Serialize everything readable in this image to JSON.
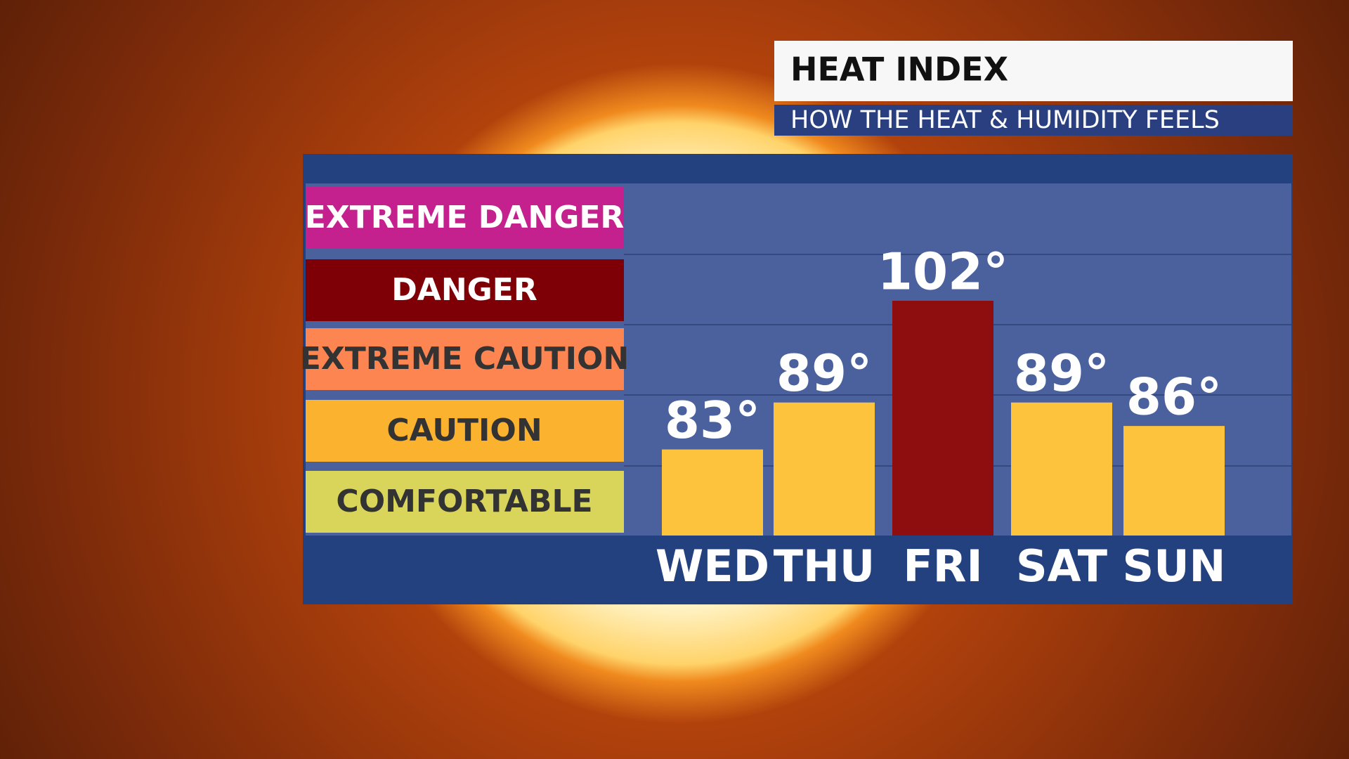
{
  "chart_data": {
    "type": "bar",
    "title": "HEAT INDEX",
    "subtitle": "HOW THE HEAT & HUMIDITY FEELS",
    "categories": [
      "WED",
      "THU",
      "FRI",
      "SAT",
      "SUN"
    ],
    "values": [
      83,
      89,
      102,
      89,
      86
    ],
    "value_labels": [
      "83°",
      "89°",
      "102°",
      "89°",
      "86°"
    ],
    "colors": [
      "#fec33d",
      "#fec33d",
      "#8e0d0e",
      "#fec33d",
      "#fec33d"
    ],
    "ylim": [
      72,
      117
    ],
    "zones": [
      {
        "label": "EXTREME DANGER",
        "color": "#c4218e"
      },
      {
        "label": "DANGER",
        "color": "#7e0006"
      },
      {
        "label": "EXTREME CAUTION",
        "color": "#fd8552"
      },
      {
        "label": "CAUTION",
        "color": "#fbb22f"
      },
      {
        "label": "COMFORTABLE",
        "color": "#d8d55a"
      }
    ]
  }
}
